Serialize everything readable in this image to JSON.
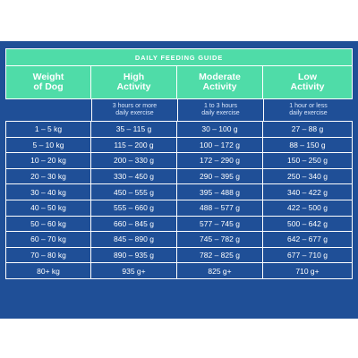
{
  "guide": {
    "title": "DAILY FEEDING GUIDE",
    "header": {
      "weight": [
        "Weight",
        "of Dog"
      ],
      "high": [
        "High",
        "Activity"
      ],
      "moderate": [
        "Moderate",
        "Activity"
      ],
      "low": [
        "Low",
        "Activity"
      ]
    },
    "subheader": {
      "high": [
        "3 hours or more",
        "daily exercise"
      ],
      "moderate": [
        "1 to 3 hours",
        "daily exercise"
      ],
      "low": [
        "1 hour or less",
        "daily exercise"
      ]
    },
    "rows": [
      {
        "weight": "1 – 5 kg",
        "high": "35 – 115 g",
        "moderate": "30 – 100 g",
        "low": "27 – 88 g"
      },
      {
        "weight": "5 – 10 kg",
        "high": "115 – 200 g",
        "moderate": "100 – 172 g",
        "low": "88 – 150 g"
      },
      {
        "weight": "10 – 20 kg",
        "high": "200 – 330 g",
        "moderate": "172 – 290 g",
        "low": "150 – 250 g"
      },
      {
        "weight": "20 – 30 kg",
        "high": "330 – 450 g",
        "moderate": "290 – 395 g",
        "low": "250 – 340 g"
      },
      {
        "weight": "30 – 40 kg",
        "high": "450 – 555 g",
        "moderate": "395 – 488 g",
        "low": "340 – 422 g"
      },
      {
        "weight": "40 – 50 kg",
        "high": "555 – 660 g",
        "moderate": "488 – 577 g",
        "low": "422 – 500 g"
      },
      {
        "weight": "50 – 60 kg",
        "high": "660 – 845 g",
        "moderate": "577 – 745 g",
        "low": "500 – 642 g"
      },
      {
        "weight": "60 – 70 kg",
        "high": "845 – 890 g",
        "moderate": "745 – 782 g",
        "low": "642 – 677 g"
      },
      {
        "weight": "70 – 80 kg",
        "high": "890 – 935 g",
        "moderate": "782 – 825 g",
        "low": "677 – 710 g"
      },
      {
        "weight": "80+ kg",
        "high": "935 g+",
        "moderate": "825 g+",
        "low": "710 g+"
      }
    ]
  },
  "colors": {
    "panel_background": "#1f4f97",
    "header_green": "#4fdca8",
    "grid_lines": "#ffffff",
    "text": "#ffffff"
  }
}
